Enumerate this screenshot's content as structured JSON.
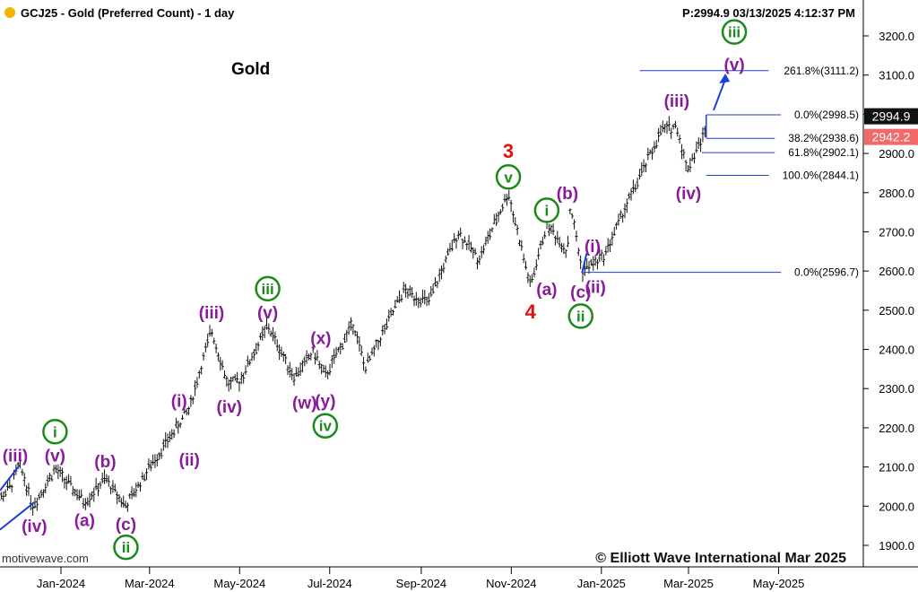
{
  "header": {
    "symbol_title": "GCJ25 - Gold (Preferred Count) - 1 day",
    "price_time": "P:2994.9  03/13/2025 4:12:37 PM"
  },
  "chart_title": "Gold",
  "watermark_left": "motivewave.com",
  "watermark_right": "© Elliott Wave International Mar 2025",
  "colors": {
    "purple": "#8a1a9c",
    "green": "#1a8a1a",
    "red": "#e01010",
    "blue": "#1a3fd8",
    "bars": "#111111",
    "last_price_bg": "#111111",
    "bid_bg": "#f06a6a",
    "logo_dot": "#f2b400"
  },
  "chart_data": {
    "type": "line",
    "title": "Gold",
    "ylim": [
      1850,
      3280
    ],
    "y_ticks": [
      "3200.0",
      "3100.0",
      "3000.0",
      "2900.0",
      "2800.0",
      "2700.0",
      "2600.0",
      "2500.0",
      "2400.0",
      "2300.0",
      "2200.0",
      "2100.0",
      "2000.0",
      "1900.0"
    ],
    "x_ticks": [
      {
        "label": "Jan-2024",
        "date": "2024-01-01"
      },
      {
        "label": "Mar-2024",
        "date": "2024-03-01"
      },
      {
        "label": "May-2024",
        "date": "2024-05-01"
      },
      {
        "label": "Jul-2024",
        "date": "2024-07-01"
      },
      {
        "label": "Sep-2024",
        "date": "2024-09-01"
      },
      {
        "label": "Nov-2024",
        "date": "2024-11-01"
      },
      {
        "label": "Jan-2025",
        "date": "2025-01-01"
      },
      {
        "label": "Mar-2025",
        "date": "2025-03-01"
      },
      {
        "label": "May-2025",
        "date": "2025-05-01"
      }
    ],
    "price_path": [
      [
        "2023-11-13",
        1985
      ],
      [
        "2023-11-28",
        2050
      ],
      [
        "2023-12-04",
        2110
      ],
      [
        "2023-12-13",
        2000
      ],
      [
        "2023-12-28",
        2095
      ],
      [
        "2024-01-17",
        2010
      ],
      [
        "2024-01-31",
        2070
      ],
      [
        "2024-02-14",
        2000
      ],
      [
        "2024-03-01",
        2100
      ],
      [
        "2024-03-21",
        2210
      ],
      [
        "2024-03-28",
        2250
      ],
      [
        "2024-04-12",
        2450
      ],
      [
        "2024-04-23",
        2310
      ],
      [
        "2024-05-01",
        2320
      ],
      [
        "2024-05-20",
        2460
      ],
      [
        "2024-06-07",
        2330
      ],
      [
        "2024-06-20",
        2395
      ],
      [
        "2024-06-28",
        2330
      ],
      [
        "2024-07-17",
        2470
      ],
      [
        "2024-07-25",
        2350
      ],
      [
        "2024-08-20",
        2550
      ],
      [
        "2024-09-06",
        2520
      ],
      [
        "2024-09-26",
        2700
      ],
      [
        "2024-10-10",
        2630
      ],
      [
        "2024-10-30",
        2800
      ],
      [
        "2024-11-14",
        2560
      ],
      [
        "2024-11-25",
        2720
      ],
      [
        "2024-12-09",
        2650
      ],
      [
        "2024-12-11",
        2770
      ],
      [
        "2024-12-19",
        2600
      ],
      [
        "2025-01-03",
        2640
      ],
      [
        "2025-01-17",
        2760
      ],
      [
        "2025-02-11",
        2960
      ],
      [
        "2025-02-21",
        2970
      ],
      [
        "2025-02-28",
        2860
      ],
      [
        "2025-03-13",
        2960
      ]
    ],
    "last_price": "2994.9",
    "bid_price": "2942.2",
    "fib_levels": [
      {
        "label": "261.8%(3111.2)",
        "value": 3111.2
      },
      {
        "label": "0.0%(2998.5)",
        "value": 2998.5
      },
      {
        "label": "38.2%(2938.6)",
        "value": 2938.6
      },
      {
        "label": "61.8%(2902.1)",
        "value": 2902.1
      },
      {
        "label": "100.0%(2844.1)",
        "value": 2844.1
      },
      {
        "label": "0.0%(2596.7)",
        "value": 2596.7
      }
    ],
    "wave_labels": [
      {
        "text": "(iii)",
        "color": "purple",
        "circled": false,
        "date": "2023-12-01",
        "y": 2130
      },
      {
        "text": "i",
        "color": "green",
        "circled": true,
        "date": "2023-12-28",
        "y": 2190
      },
      {
        "text": "(v)",
        "color": "purple",
        "circled": false,
        "date": "2023-12-28",
        "y": 2130
      },
      {
        "text": "(iv)",
        "color": "purple",
        "circled": false,
        "date": "2023-12-14",
        "y": 1950
      },
      {
        "text": "(a)",
        "color": "purple",
        "circled": false,
        "date": "2024-01-17",
        "y": 1965
      },
      {
        "text": "(b)",
        "color": "purple",
        "circled": false,
        "date": "2024-01-31",
        "y": 2115
      },
      {
        "text": "(c)",
        "color": "purple",
        "circled": false,
        "date": "2024-02-14",
        "y": 1955
      },
      {
        "text": "ii",
        "color": "green",
        "circled": true,
        "date": "2024-02-14",
        "y": 1895
      },
      {
        "text": "(i)",
        "color": "purple",
        "circled": false,
        "date": "2024-03-21",
        "y": 2270
      },
      {
        "text": "(ii)",
        "color": "purple",
        "circled": false,
        "date": "2024-03-28",
        "y": 2120
      },
      {
        "text": "(iii)",
        "color": "purple",
        "circled": false,
        "date": "2024-04-12",
        "y": 2495
      },
      {
        "text": "(iv)",
        "color": "purple",
        "circled": false,
        "date": "2024-04-24",
        "y": 2255
      },
      {
        "text": "(v)",
        "color": "purple",
        "circled": false,
        "date": "2024-05-20",
        "y": 2495
      },
      {
        "text": "iii",
        "color": "green",
        "circled": true,
        "date": "2024-05-20",
        "y": 2555
      },
      {
        "text": "(x)",
        "color": "purple",
        "circled": false,
        "date": "2024-06-25",
        "y": 2430
      },
      {
        "text": "(w)",
        "color": "purple",
        "circled": false,
        "date": "2024-06-14",
        "y": 2265
      },
      {
        "text": "(y)",
        "color": "purple",
        "circled": false,
        "date": "2024-06-28",
        "y": 2270
      },
      {
        "text": "iv",
        "color": "green",
        "circled": true,
        "date": "2024-06-28",
        "y": 2205
      },
      {
        "text": "3",
        "color": "red",
        "circled": false,
        "date": "2024-10-30",
        "y": 2905
      },
      {
        "text": "v",
        "color": "green",
        "circled": true,
        "date": "2024-10-30",
        "y": 2840
      },
      {
        "text": "4",
        "color": "red",
        "circled": false,
        "date": "2024-11-14",
        "y": 2495
      },
      {
        "text": "(a)",
        "color": "purple",
        "circled": false,
        "date": "2024-11-25",
        "y": 2555
      },
      {
        "text": "i",
        "color": "green",
        "circled": true,
        "date": "2024-11-25",
        "y": 2755
      },
      {
        "text": "(b)",
        "color": "purple",
        "circled": false,
        "date": "2024-12-09",
        "y": 2800
      },
      {
        "text": "(c)",
        "color": "purple",
        "circled": false,
        "date": "2024-12-18",
        "y": 2548
      },
      {
        "text": "ii",
        "color": "green",
        "circled": true,
        "date": "2024-12-18",
        "y": 2485
      },
      {
        "text": "(i)",
        "color": "purple",
        "circled": false,
        "date": "2024-12-26",
        "y": 2665
      },
      {
        "text": "(ii)",
        "color": "purple",
        "circled": false,
        "date": "2024-12-28",
        "y": 2560
      },
      {
        "text": "(iii)",
        "color": "purple",
        "circled": false,
        "date": "2025-02-21",
        "y": 3035
      },
      {
        "text": "(iv)",
        "color": "purple",
        "circled": false,
        "date": "2025-03-01",
        "y": 2800
      },
      {
        "text": "(v)",
        "color": "purple",
        "circled": false,
        "date": "2025-04-01",
        "y": 3128
      },
      {
        "text": "iii",
        "color": "green",
        "circled": true,
        "date": "2025-04-01",
        "y": 3210
      }
    ]
  }
}
